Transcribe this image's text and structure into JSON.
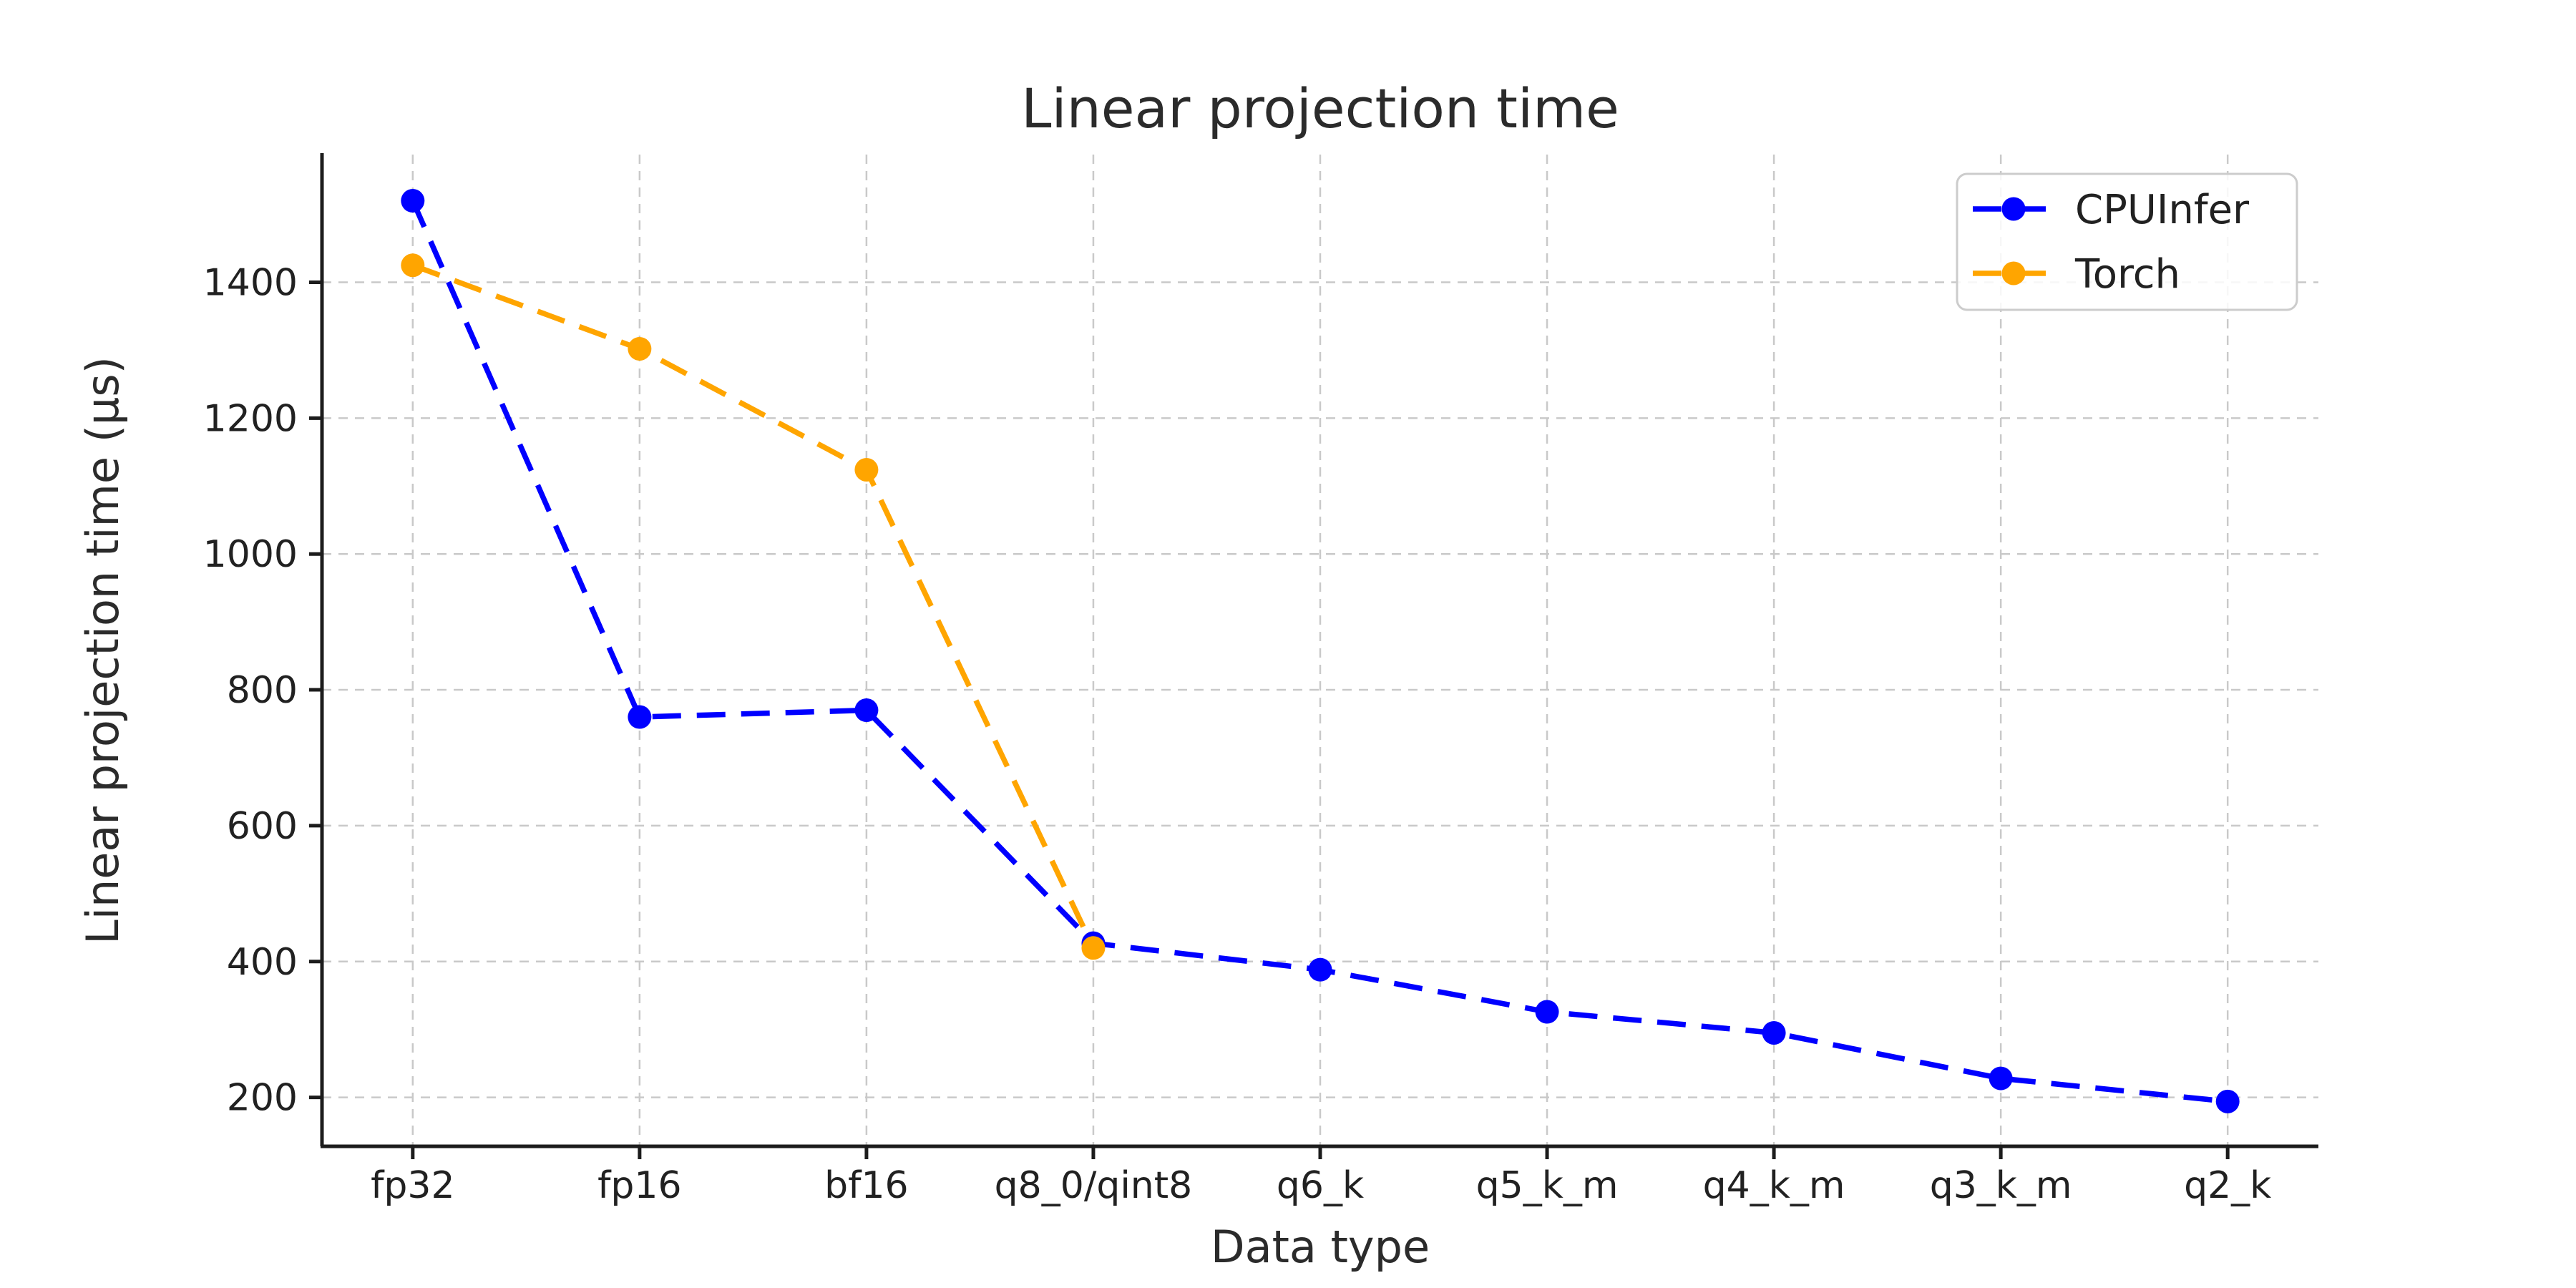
{
  "figure": {
    "background": "#ffffff"
  },
  "chart_data": {
    "type": "line",
    "title": "Linear projection time",
    "xlabel": "Data type",
    "ylabel": "Linear projection time (µs)",
    "categories": [
      "fp32",
      "fp16",
      "bf16",
      "q8_0/qint8",
      "q6_k",
      "q5_k_m",
      "q4_k_m",
      "q3_k_m",
      "q2_k"
    ],
    "series": [
      {
        "name": "CPUInfer",
        "color": "#0000ff",
        "values": [
          1520,
          760,
          770,
          427,
          388,
          326,
          295,
          228,
          194
        ]
      },
      {
        "name": "Torch",
        "color": "#ffa500",
        "values": [
          1425,
          1302,
          1124,
          420
        ]
      }
    ],
    "yticks": [
      200,
      400,
      600,
      800,
      1000,
      1200,
      1400
    ],
    "ylim": [
      128,
      1588
    ],
    "xlim": [
      -0.4,
      8.4
    ],
    "grid": true,
    "grid_style": "dashed",
    "line_style": "dashed",
    "marker": "circle",
    "legend_position": "upper right",
    "style": {
      "grid_color": "#c9c9c9",
      "axis_color": "#1c1c1c",
      "text_color": "#212121",
      "legend_border_color": "#cccccc",
      "legend_background": "#ffffff"
    }
  }
}
